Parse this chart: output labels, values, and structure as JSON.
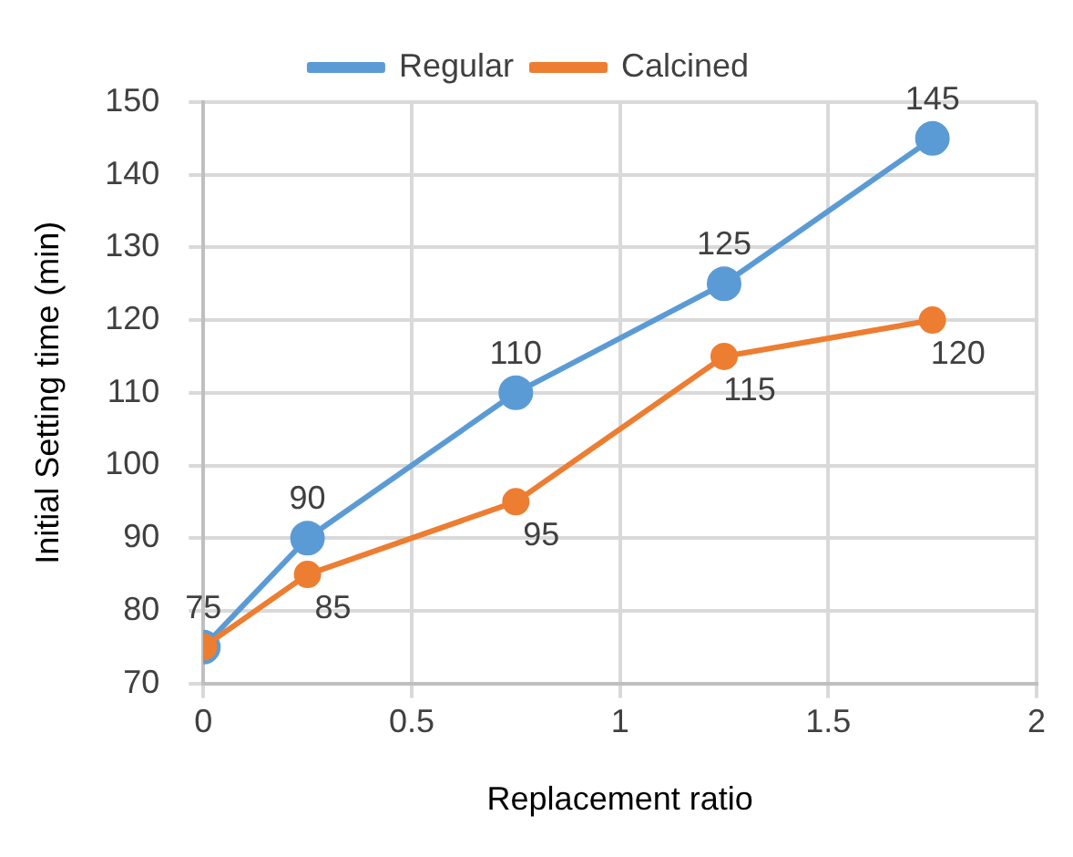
{
  "chart_data": {
    "type": "line",
    "xlabel": "Replacement ratio",
    "ylabel": "Initial Setting time (min)",
    "x": [
      0,
      0.25,
      0.75,
      1.25,
      1.75
    ],
    "series": [
      {
        "name": "Regular",
        "color": "#5b9bd5",
        "values": [
          75,
          90,
          110,
          125,
          145
        ],
        "value_labels": [
          "75",
          "90",
          "110",
          "125",
          "145"
        ]
      },
      {
        "name": "Calcined",
        "color": "#ed7d31",
        "values": [
          75,
          85,
          95,
          115,
          120
        ],
        "value_labels": [
          null,
          "85",
          "95",
          "115",
          "120"
        ]
      }
    ],
    "xlim": [
      0,
      2
    ],
    "xticks": [
      0,
      0.5,
      1,
      1.5,
      2
    ],
    "ylim": [
      70,
      150
    ],
    "yticks": [
      70,
      80,
      90,
      100,
      110,
      120,
      130,
      140,
      150
    ],
    "grid": true,
    "legend": "top",
    "marker": "circle",
    "line_style": "solid"
  }
}
